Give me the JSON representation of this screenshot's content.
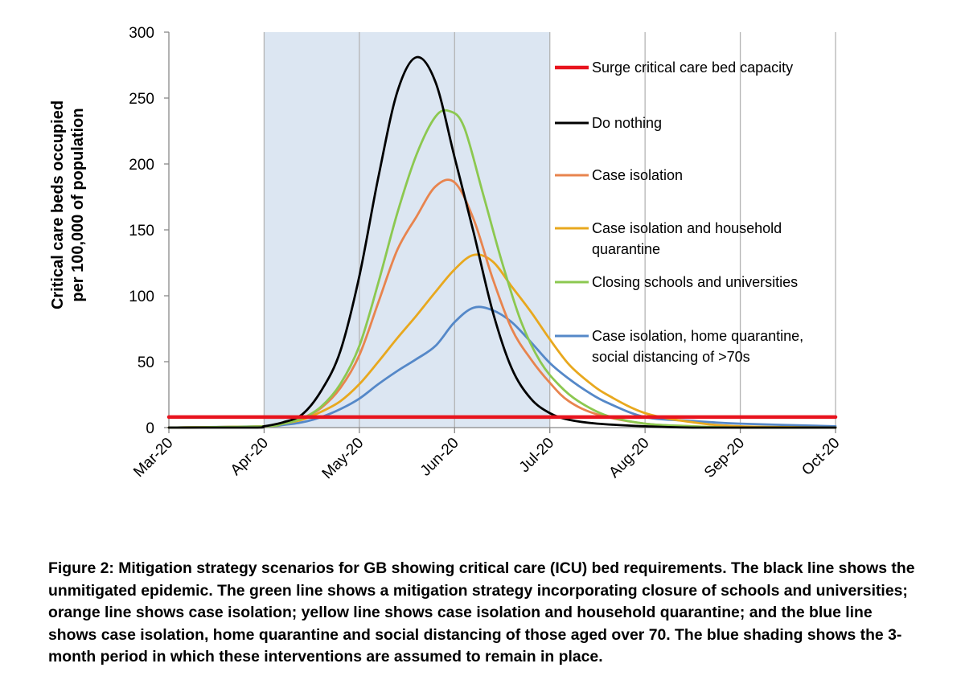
{
  "chart_data": {
    "type": "line",
    "ylabel_lines": [
      "Critical care beds occupied",
      "per 100,000 of population"
    ],
    "xlabel": "",
    "ylim": [
      0,
      300
    ],
    "yticks": [
      0,
      50,
      100,
      150,
      200,
      250,
      300
    ],
    "x_tick_labels": [
      "Mar-20",
      "Apr-20",
      "May-20",
      "Jun-20",
      "Jul-20",
      "Aug-20",
      "Sep-20",
      "Oct-20"
    ],
    "x_unit": "months since start of Mar-20",
    "xlim": [
      0,
      7
    ],
    "grid": "vertical",
    "shaded_region": {
      "start": 1,
      "end": 4,
      "color": "#dce6f2"
    },
    "legend_position": "right",
    "series": [
      {
        "name": "Surge critical care bed capacity",
        "color": "#e8141e",
        "x": [
          0,
          7
        ],
        "y": [
          8,
          8
        ]
      },
      {
        "name": "Do nothing",
        "color": "#000000",
        "x": [
          0,
          0.9,
          1,
          1.2,
          1.4,
          1.6,
          1.8,
          2,
          2.2,
          2.4,
          2.6,
          2.8,
          3,
          3.2,
          3.4,
          3.6,
          3.8,
          4,
          4.2,
          4.5,
          5,
          5.5,
          6,
          7
        ],
        "y": [
          0,
          0,
          1,
          4,
          10,
          28,
          58,
          115,
          190,
          255,
          281,
          262,
          205,
          148,
          88,
          45,
          22,
          11,
          6,
          3,
          1,
          0,
          0,
          0
        ]
      },
      {
        "name": "Case isolation",
        "color": "#e8844e",
        "x": [
          0,
          1,
          1.2,
          1.4,
          1.6,
          1.8,
          2,
          2.2,
          2.4,
          2.6,
          2.8,
          3,
          3.2,
          3.4,
          3.6,
          3.8,
          4,
          4.2,
          4.5,
          5,
          5.5,
          6,
          7
        ],
        "y": [
          0,
          1,
          3,
          7,
          15,
          30,
          55,
          95,
          135,
          160,
          183,
          186,
          158,
          113,
          75,
          52,
          34,
          20,
          10,
          3,
          1,
          0,
          0
        ]
      },
      {
        "name": "Case isolation and household quarantine",
        "color": "#e8a81e",
        "x": [
          0,
          1,
          1.2,
          1.4,
          1.6,
          1.8,
          2,
          2.2,
          2.4,
          2.6,
          2.8,
          3,
          3.2,
          3.4,
          3.6,
          3.8,
          4,
          4.2,
          4.4,
          4.6,
          5,
          5.5,
          6,
          7
        ],
        "y": [
          0,
          1,
          3,
          6,
          12,
          20,
          33,
          50,
          68,
          85,
          103,
          120,
          131,
          126,
          107,
          88,
          67,
          48,
          35,
          25,
          11,
          4,
          1,
          0
        ]
      },
      {
        "name": "Closing schools and universities",
        "color": "#8cc850",
        "x": [
          0,
          1,
          1.2,
          1.4,
          1.6,
          1.8,
          2,
          2.2,
          2.4,
          2.6,
          2.8,
          2.95,
          3.1,
          3.3,
          3.5,
          3.7,
          3.9,
          4.1,
          4.3,
          4.6,
          5,
          5.5,
          6,
          7
        ],
        "y": [
          0,
          1,
          3,
          7,
          16,
          33,
          62,
          110,
          163,
          207,
          236,
          240,
          228,
          177,
          125,
          80,
          50,
          32,
          20,
          9,
          3,
          1,
          0,
          0
        ]
      },
      {
        "name": "Case isolation, home quarantine, social distancing of >70s",
        "color": "#5588c8",
        "x": [
          0,
          1,
          1.2,
          1.4,
          1.6,
          1.8,
          2,
          2.2,
          2.4,
          2.6,
          2.8,
          3,
          3.2,
          3.4,
          3.6,
          3.8,
          4,
          4.2,
          4.4,
          4.6,
          5,
          5.5,
          6,
          7
        ],
        "y": [
          0,
          1,
          2,
          4,
          8,
          14,
          22,
          33,
          43,
          52,
          62,
          80,
          91,
          89,
          80,
          65,
          49,
          37,
          27,
          19,
          8,
          5,
          3,
          1
        ]
      }
    ]
  },
  "caption": "Figure 2: Mitigation strategy scenarios for GB showing critical care (ICU) bed requirements. The black line shows the unmitigated epidemic. The green line shows a mitigation strategy incorporating closure of schools and universities; orange line shows case isolation; yellow line shows case isolation and household quarantine; and the blue line shows case isolation, home quarantine and social distancing of those aged over 70. The blue shading shows the 3-month period in which these interventions are assumed to remain in place.",
  "legend_wrapped": [
    [
      "Surge critical care bed capacity"
    ],
    [
      "Do nothing"
    ],
    [
      "Case isolation"
    ],
    [
      "Case isolation and household",
      "quarantine"
    ],
    [
      "Closing schools and universities"
    ],
    [
      "Case isolation, home quarantine,",
      "social distancing of >70s"
    ]
  ]
}
